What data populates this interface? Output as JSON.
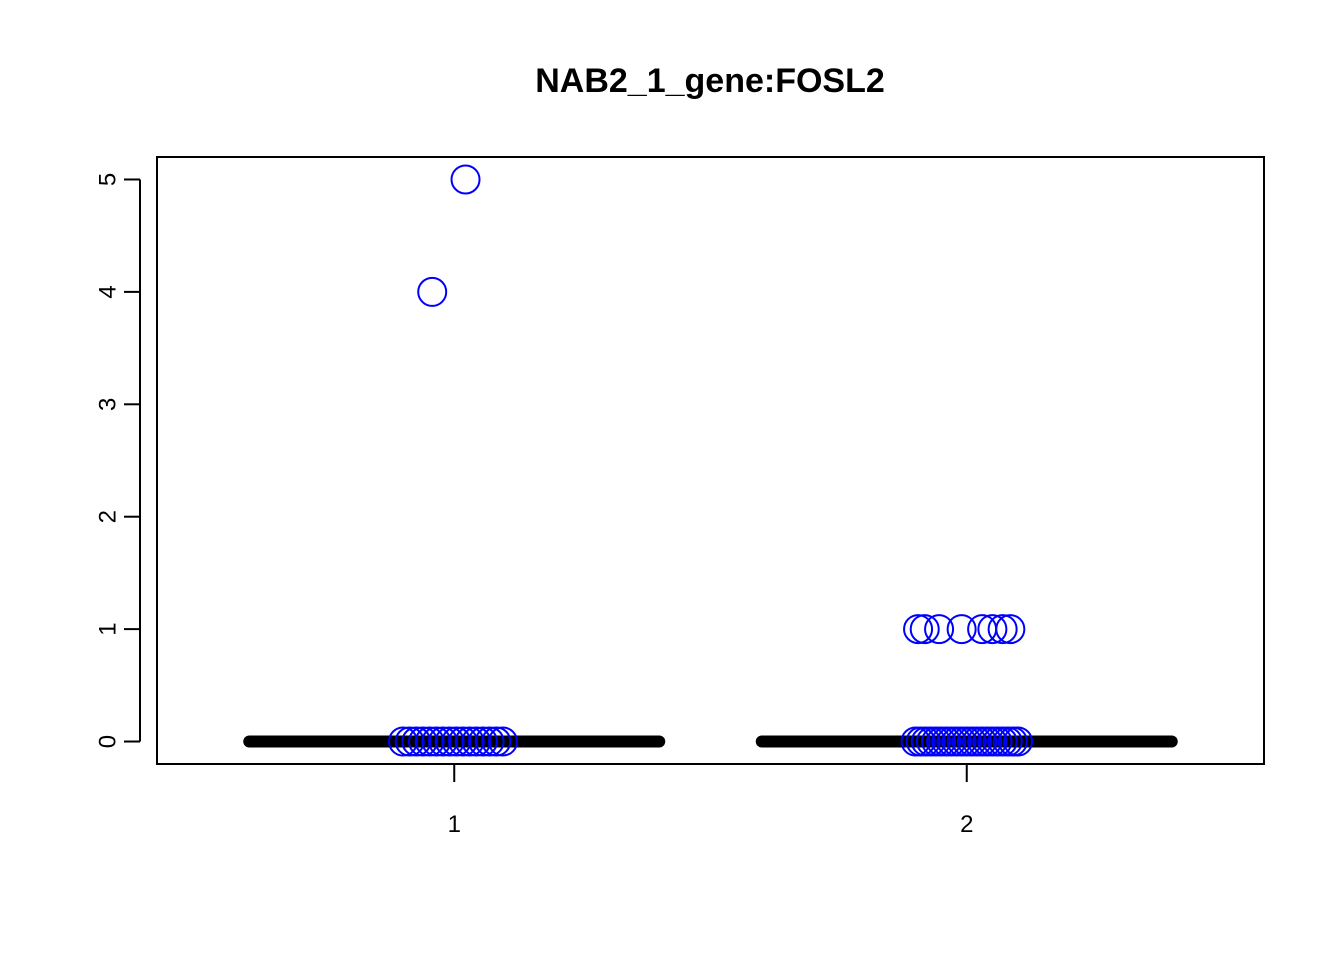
{
  "chart_data": {
    "type": "scatter",
    "title": "NAB2_1_gene:FOSL2",
    "xlabel": "",
    "ylabel": "",
    "categories": [
      "1",
      "2"
    ],
    "xlim": [
      0.42,
      2.58
    ],
    "ylim": [
      -0.2,
      5.2
    ],
    "y_ticks": [
      0,
      1,
      2,
      3,
      4,
      5
    ],
    "point_color": "#0000ff",
    "median_color": "#000000",
    "medians": [
      0,
      0
    ],
    "series": [
      {
        "name": "1",
        "points": [
          {
            "x": 0.957,
            "y": 4
          },
          {
            "x": 1.022,
            "y": 5
          },
          {
            "x": 0.9,
            "y": 0
          },
          {
            "x": 0.913,
            "y": 0
          },
          {
            "x": 0.926,
            "y": 0
          },
          {
            "x": 0.939,
            "y": 0
          },
          {
            "x": 0.952,
            "y": 0
          },
          {
            "x": 0.965,
            "y": 0
          },
          {
            "x": 0.978,
            "y": 0
          },
          {
            "x": 0.991,
            "y": 0
          },
          {
            "x": 1.004,
            "y": 0
          },
          {
            "x": 1.017,
            "y": 0
          },
          {
            "x": 1.03,
            "y": 0
          },
          {
            "x": 1.043,
            "y": 0
          },
          {
            "x": 1.056,
            "y": 0
          },
          {
            "x": 1.069,
            "y": 0
          },
          {
            "x": 1.082,
            "y": 0
          },
          {
            "x": 1.095,
            "y": 0
          }
        ]
      },
      {
        "name": "2",
        "points": [
          {
            "x": 1.905,
            "y": 1
          },
          {
            "x": 1.918,
            "y": 1
          },
          {
            "x": 1.946,
            "y": 1
          },
          {
            "x": 1.99,
            "y": 1
          },
          {
            "x": 2.03,
            "y": 1
          },
          {
            "x": 2.05,
            "y": 1
          },
          {
            "x": 2.07,
            "y": 1
          },
          {
            "x": 2.085,
            "y": 1
          },
          {
            "x": 1.9,
            "y": 0
          },
          {
            "x": 1.91,
            "y": 0
          },
          {
            "x": 1.92,
            "y": 0
          },
          {
            "x": 1.93,
            "y": 0
          },
          {
            "x": 1.94,
            "y": 0
          },
          {
            "x": 1.95,
            "y": 0
          },
          {
            "x": 1.96,
            "y": 0
          },
          {
            "x": 1.97,
            "y": 0
          },
          {
            "x": 1.98,
            "y": 0
          },
          {
            "x": 1.99,
            "y": 0
          },
          {
            "x": 2.0,
            "y": 0
          },
          {
            "x": 2.01,
            "y": 0
          },
          {
            "x": 2.02,
            "y": 0
          },
          {
            "x": 2.03,
            "y": 0
          },
          {
            "x": 2.04,
            "y": 0
          },
          {
            "x": 2.05,
            "y": 0
          },
          {
            "x": 2.06,
            "y": 0
          },
          {
            "x": 2.07,
            "y": 0
          },
          {
            "x": 2.08,
            "y": 0
          },
          {
            "x": 2.09,
            "y": 0
          },
          {
            "x": 2.1,
            "y": 0
          }
        ]
      }
    ]
  }
}
